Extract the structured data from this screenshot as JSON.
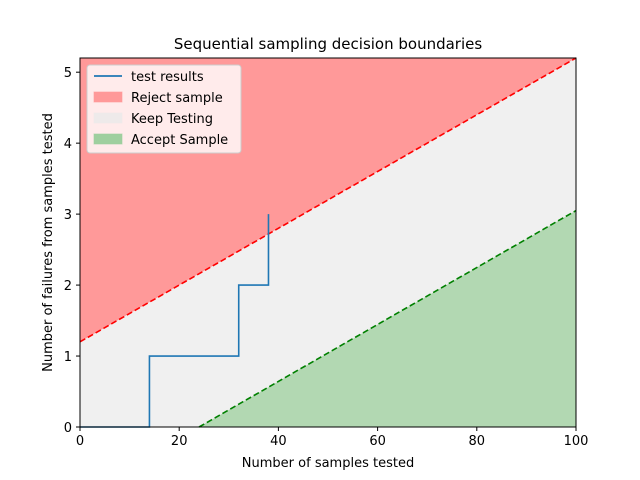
{
  "chart_data": {
    "type": "line",
    "title": "Sequential sampling decision boundaries",
    "xlabel": "Number of samples tested",
    "ylabel": "Number of failures from samples tested",
    "xlim": [
      0,
      100
    ],
    "ylim": [
      0,
      5.2
    ],
    "xticks": [
      0,
      20,
      40,
      60,
      80,
      100
    ],
    "yticks": [
      0,
      1,
      2,
      3,
      4,
      5
    ],
    "grid": false,
    "legend_position": "top-left",
    "reject_line": {
      "x": [
        0,
        100
      ],
      "y": [
        1.2,
        5.2
      ],
      "color": "#ff0000",
      "style": "dashed"
    },
    "accept_line": {
      "x": [
        24,
        100
      ],
      "y": [
        0,
        3.05
      ],
      "color": "#008000",
      "style": "dashed"
    },
    "regions": [
      {
        "name": "Reject sample",
        "color": "#ff9999"
      },
      {
        "name": "Keep Testing",
        "color": "#f0f0f0"
      },
      {
        "name": "Accept Sample",
        "color": "#b2d8b2"
      }
    ],
    "series": [
      {
        "name": "test results",
        "color": "#1f77b4",
        "x": [
          0,
          14,
          14,
          32,
          32,
          38,
          38
        ],
        "y": [
          0,
          0,
          1,
          1,
          2,
          2,
          3
        ]
      }
    ],
    "legend": [
      {
        "label": "test results",
        "kind": "line",
        "color": "#1f77b4"
      },
      {
        "label": "Reject sample",
        "kind": "patch",
        "color": "#ff9999"
      },
      {
        "label": "Keep Testing",
        "kind": "patch",
        "color": "#eeeaea"
      },
      {
        "label": "Accept Sample",
        "kind": "patch",
        "color": "#9fcf9f"
      }
    ]
  }
}
